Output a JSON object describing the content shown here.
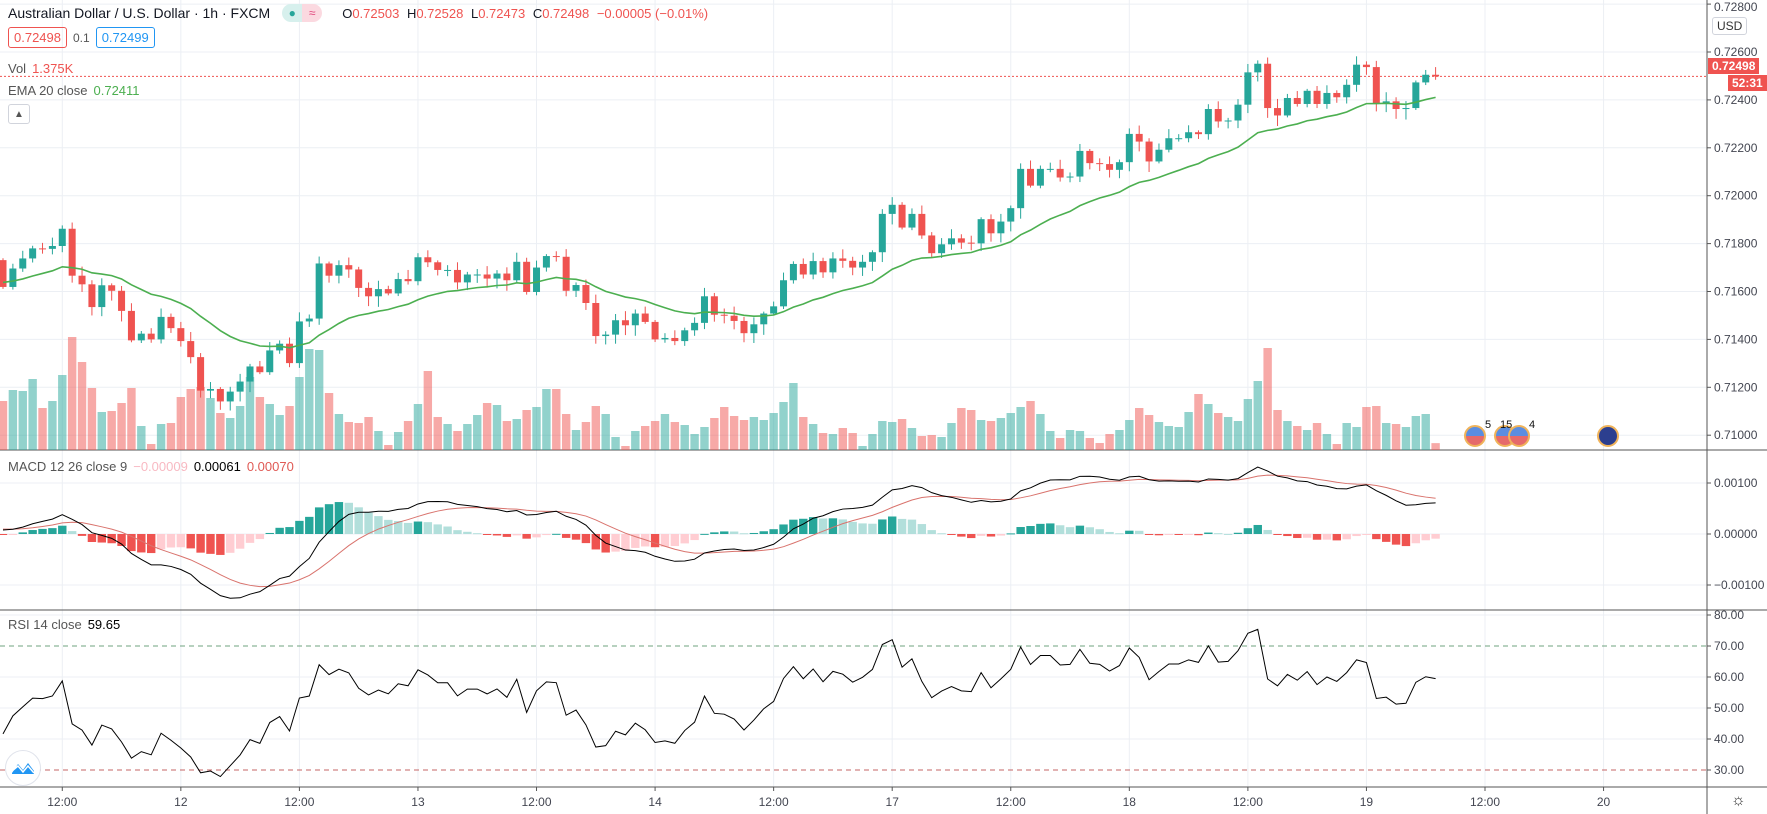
{
  "header": {
    "symbol_title": "Australian Dollar / U.S. Dollar · 1h · FXCM",
    "status_dot": "●",
    "status_wave": "≈",
    "ohlc": [
      {
        "k": "O",
        "v": "0.72503"
      },
      {
        "k": "H",
        "v": "0.72528"
      },
      {
        "k": "L",
        "v": "0.72473"
      },
      {
        "k": "C",
        "v": "0.72498"
      }
    ],
    "change": "−0.00005 (−0.01%)",
    "bid": "0.72498",
    "spread": "0.1",
    "ask": "0.72499",
    "vol_label": "Vol",
    "vol_value": "1.375K",
    "ema_label": "EMA 20 close",
    "ema_value": "0.72411",
    "collapse_icon": "chevron-up-icon"
  },
  "price_axis": {
    "currency": "USD",
    "ticks": [
      "0.72800",
      "0.72600",
      "0.72400",
      "0.72200",
      "0.72000",
      "0.71800",
      "0.71600",
      "0.71400",
      "0.71200",
      "0.71000"
    ],
    "last_price": "0.72498",
    "countdown": "52:31"
  },
  "macd": {
    "label": "MACD 12 26 close 9",
    "hist_value": "−0.00009",
    "macd_value": "0.00061",
    "signal_value": "0.00070",
    "ticks": [
      "0.00100",
      "0.00000",
      "−0.00100"
    ]
  },
  "rsi": {
    "label": "RSI 14 close",
    "value": "59.65",
    "ticks": [
      "80.00",
      "70.00",
      "60.00",
      "50.00",
      "40.00",
      "30.00"
    ],
    "upper_band": 70,
    "lower_band": 30
  },
  "time_axis": {
    "labels": [
      "12:00",
      "12",
      "12:00",
      "13",
      "12:00",
      "14",
      "12:00",
      "17",
      "12:00",
      "18",
      "12:00",
      "19",
      "12:00",
      "20"
    ]
  },
  "events": [
    {
      "icon": "us-flag-icon",
      "count": "5"
    },
    {
      "icon": "us-flag-icon",
      "count": "15"
    },
    {
      "icon": "us-flag-icon",
      "count": "4"
    },
    {
      "icon": "au-flag-icon",
      "count": ""
    }
  ],
  "colors": {
    "up": "#26a69a",
    "down": "#ef5350",
    "ema": "#4caf50",
    "macd_line": "#000000",
    "signal_line": "#d9736d",
    "hist_up_strong": "#26a69a",
    "hist_up_weak": "#b2dfdb",
    "hist_down_strong": "#ef5350",
    "hist_down_weak": "#ffcdd2",
    "grid": "#eceff4"
  },
  "chart_data": {
    "type": "candlestick",
    "interval": "1h",
    "first_open": 0.71731,
    "close": [
      0.71619,
      0.71696,
      0.71738,
      0.7178,
      0.71778,
      0.7179,
      0.71862,
      0.71666,
      0.7163,
      0.71535,
      0.71626,
      0.71603,
      0.71519,
      0.71396,
      0.71424,
      0.714,
      0.71494,
      0.71447,
      0.71393,
      0.71326,
      0.71186,
      0.71193,
      0.71141,
      0.71182,
      0.71224,
      0.71287,
      0.71263,
      0.71354,
      0.71382,
      0.71301,
      0.71475,
      0.71487,
      0.71717,
      0.71666,
      0.7171,
      0.71692,
      0.71615,
      0.7158,
      0.7161,
      0.71592,
      0.71652,
      0.71643,
      0.71743,
      0.71722,
      0.7169,
      0.7169,
      0.71638,
      0.71671,
      0.71671,
      0.71654,
      0.71675,
      0.71647,
      0.71724,
      0.71598,
      0.717,
      0.71748,
      0.71745,
      0.71603,
      0.71627,
      0.71552,
      0.71414,
      0.7142,
      0.7148,
      0.71459,
      0.71508,
      0.71473,
      0.714,
      0.71406,
      0.71393,
      0.71438,
      0.71469,
      0.7158,
      0.71503,
      0.71499,
      0.71477,
      0.71426,
      0.71463,
      0.71508,
      0.71538,
      0.71647,
      0.71715,
      0.71671,
      0.71727,
      0.7168,
      0.71738,
      0.71728,
      0.717,
      0.71724,
      0.71764,
      0.71924,
      0.71962,
      0.71867,
      0.71924,
      0.71834,
      0.7176,
      0.71797,
      0.71822,
      0.71804,
      0.71801,
      0.71902,
      0.71843,
      0.71892,
      0.71948,
      0.72112,
      0.72042,
      0.72112,
      0.72112,
      0.72076,
      0.7208,
      0.72187,
      0.72136,
      0.72132,
      0.72108,
      0.7214,
      0.72258,
      0.72226,
      0.72143,
      0.72192,
      0.7224,
      0.7224,
      0.72265,
      0.72257,
      0.72362,
      0.7231,
      0.72314,
      0.7238,
      0.72515,
      0.72551,
      0.72366,
      0.72335,
      0.72408,
      0.72383,
      0.72438,
      0.72383,
      0.72429,
      0.72411,
      0.72463,
      0.72547,
      0.72537,
      0.72387,
      0.72394,
      0.72362,
      0.72366,
      0.72473,
      0.72505,
      0.72498
    ],
    "volume_k": [
      9.8,
      12,
      11.8,
      14.2,
      8.4,
      9.8,
      15,
      22.6,
      17.6,
      12.4,
      7.6,
      7.8,
      9.4,
      12.4,
      4.8,
      1.2,
      5.2,
      5.4,
      10.6,
      12.2,
      12.6,
      10.4,
      7.4,
      6.4,
      8.8,
      14.6,
      10.6,
      9.2,
      7,
      8.8,
      14.6,
      20.2,
      20,
      11.4,
      7.2,
      5.6,
      5.4,
      6.6,
      3.8,
      1,
      3.6,
      5.8,
      9.2,
      15.8,
      6.6,
      5.2,
      3.8,
      5.2,
      7,
      9.4,
      9,
      5.8,
      6.2,
      8,
      8.6,
      12.2,
      12.2,
      7.2,
      4,
      5.6,
      8.8,
      7.2,
      2.6,
      0.8,
      3.8,
      4.8,
      5.8,
      7.2,
      5.6,
      5,
      3.2,
      4.6,
      6.4,
      8.6,
      6.8,
      6,
      6.6,
      6,
      7.4,
      9.6,
      13.4,
      6.6,
      5.2,
      3.4,
      3.2,
      4.4,
      3.4,
      0.8,
      3.2,
      5.8,
      5.6,
      6.2,
      4.4,
      2.8,
      3,
      2.6,
      5.4,
      8.4,
      8,
      6,
      5.8,
      6.4,
      7.4,
      8.6,
      9.8,
      7.2,
      3.8,
      2.4,
      4,
      3.8,
      2.4,
      1.4,
      3.2,
      4,
      6,
      8.4,
      7,
      5.6,
      4.8,
      4.6,
      7.6,
      11.2,
      9.2,
      7.4,
      6.6,
      5.8,
      10.2,
      13.8,
      20.4,
      8,
      5.8,
      4.8,
      4,
      5.4,
      3.2,
      1.2,
      5.4,
      4.6,
      8.6,
      8.8,
      5.4,
      5.2,
      4.6,
      6.8,
      7.2,
      1.375
    ],
    "ema_period": 20,
    "price_range": [
      0.7098,
      0.728
    ],
    "macd_range": [
      -0.0016,
      0.0016
    ],
    "rsi_range": [
      25,
      81
    ],
    "grid": true
  }
}
